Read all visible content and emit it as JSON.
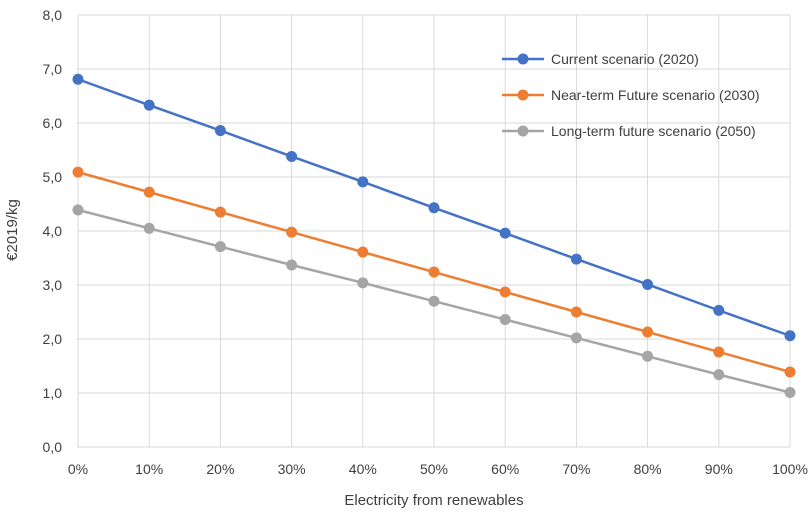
{
  "chart_data": {
    "type": "line",
    "title": "",
    "xlabel": "Electricity from renewables",
    "ylabel": "€2019/kg",
    "ylim": [
      0,
      8
    ],
    "grid": "vertical and horizontal gridlines",
    "legend_position": "top-right",
    "categories": [
      "0%",
      "10%",
      "20%",
      "30%",
      "40%",
      "50%",
      "60%",
      "70%",
      "80%",
      "90%",
      "100%"
    ],
    "y_ticks": [
      "0,0",
      "1,0",
      "2,0",
      "3,0",
      "4,0",
      "5,0",
      "6,0",
      "7,0",
      "8,0"
    ],
    "series": [
      {
        "name": "Current scenario (2020)",
        "color": "#4472C4",
        "values": [
          6.81,
          6.33,
          5.86,
          5.38,
          4.91,
          4.43,
          3.96,
          3.48,
          3.01,
          2.53,
          2.06
        ]
      },
      {
        "name": "Near-term Future scenario (2030)",
        "color": "#ED7D31",
        "values": [
          5.09,
          4.72,
          4.35,
          3.98,
          3.61,
          3.24,
          2.87,
          2.5,
          2.13,
          1.76,
          1.39
        ]
      },
      {
        "name": "Long-term future scenario (2050)",
        "color": "#A5A5A5",
        "values": [
          4.39,
          4.05,
          3.71,
          3.37,
          3.04,
          2.7,
          2.36,
          2.02,
          1.68,
          1.34,
          1.01
        ]
      }
    ]
  }
}
